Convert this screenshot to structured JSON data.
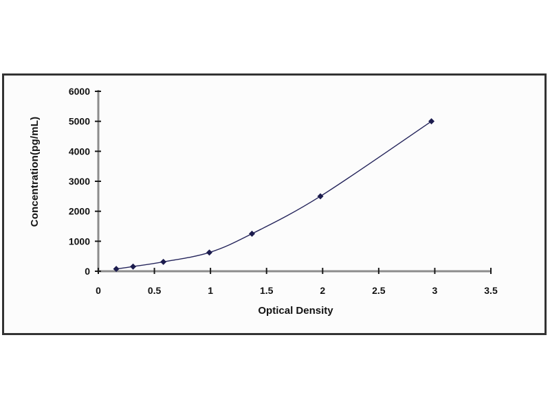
{
  "chart_data": {
    "type": "line",
    "title": "",
    "xlabel": "Optical Density",
    "ylabel": "Concentration(pg/mL)",
    "x": [
      0.16,
      0.31,
      0.58,
      0.99,
      1.37,
      1.98,
      2.97
    ],
    "y": [
      78,
      156,
      312.5,
      625,
      1250,
      2500,
      5000
    ],
    "xlim": [
      0,
      3.5
    ],
    "ylim": [
      0,
      6000
    ],
    "xticks": [
      0,
      0.5,
      1,
      1.5,
      2,
      2.5,
      3,
      3.5
    ],
    "xtick_labels": [
      "0",
      "0.5",
      "1",
      "1.5",
      "2",
      "2.5",
      "3",
      "3.5"
    ],
    "yticks": [
      0,
      1000,
      2000,
      3000,
      4000,
      5000,
      6000
    ],
    "ytick_labels": [
      "0",
      "1000",
      "2000",
      "3000",
      "4000",
      "5000",
      "6000"
    ],
    "grid": false,
    "legend": "none",
    "line_style": "smooth",
    "marker": "diamond",
    "colors": {
      "line": "#23235a",
      "marker": "#1c1c4e",
      "axis": "#8c8c8c",
      "tick": "#1a1a1a",
      "label": "#121212",
      "frame_border": "#333333",
      "background": "#ffffff"
    }
  }
}
